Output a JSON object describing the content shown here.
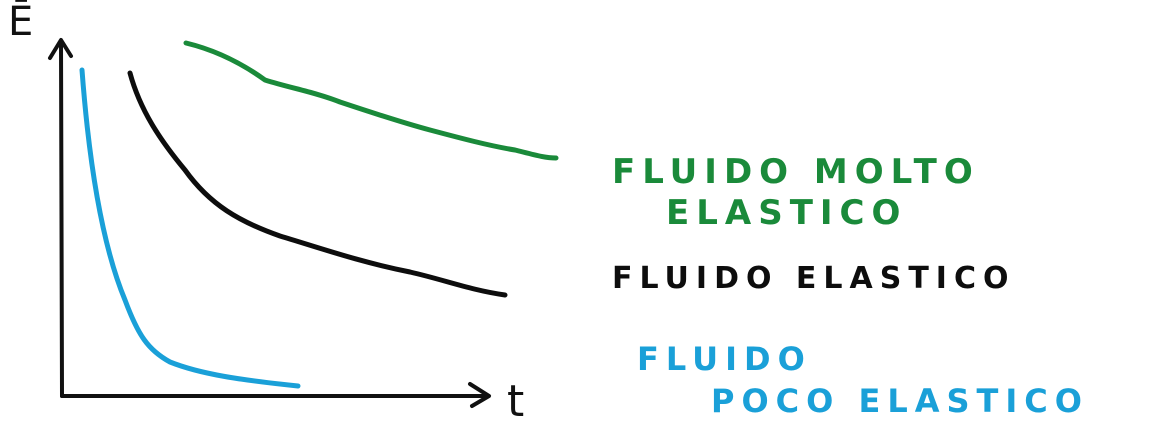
{
  "axes": {
    "y_label": "Ē",
    "x_label": "t"
  },
  "curves": [
    {
      "key": "green",
      "color": "#1a8a3a",
      "label_lines": [
        "FLUIDO MOLTO",
        "ELASTICO"
      ]
    },
    {
      "key": "black",
      "color": "#0d0d0d",
      "label_lines": [
        "FLUIDO ELASTICO"
      ]
    },
    {
      "key": "blue",
      "color": "#1aa0d8",
      "label_lines": [
        "FLUIDO",
        "POCO ELASTICO"
      ]
    }
  ]
}
